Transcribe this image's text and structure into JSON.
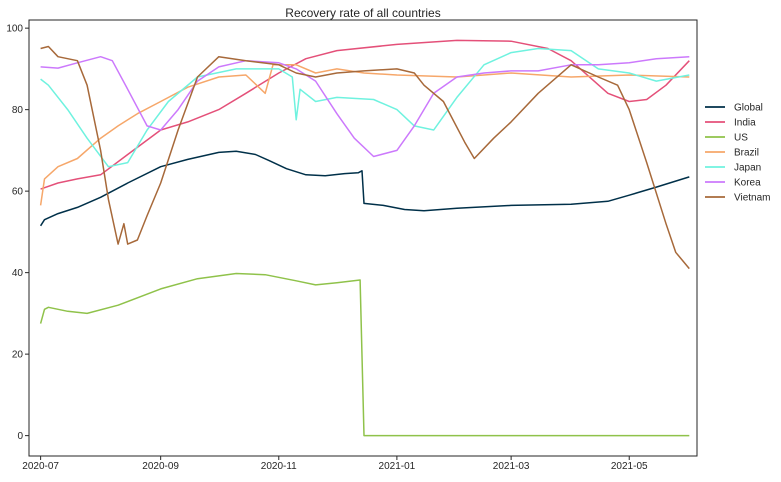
{
  "chart_data": {
    "type": "line",
    "title": "Recovery rate of all countries",
    "xlabel": "",
    "ylabel": "",
    "x_range": [
      "2020-06-25",
      "2021-06-05"
    ],
    "ylim": [
      -5,
      102
    ],
    "x_ticks": [
      {
        "date": "2020-07-01",
        "label": "2020-07"
      },
      {
        "date": "2020-09-01",
        "label": "2020-09"
      },
      {
        "date": "2020-11-01",
        "label": "2020-11"
      },
      {
        "date": "2021-01-01",
        "label": "2021-01"
      },
      {
        "date": "2021-03-01",
        "label": "2021-03"
      },
      {
        "date": "2021-05-01",
        "label": "2021-05"
      }
    ],
    "y_ticks": [
      0,
      20,
      40,
      60,
      80,
      100
    ],
    "grid": false,
    "legend_position": "right",
    "series": [
      {
        "name": "Global",
        "color": "#003049",
        "points": [
          [
            "2020-07-01",
            51.5
          ],
          [
            "2020-07-03",
            53
          ],
          [
            "2020-07-10",
            54.5
          ],
          [
            "2020-07-20",
            56
          ],
          [
            "2020-08-01",
            58.5
          ],
          [
            "2020-08-15",
            62
          ],
          [
            "2020-09-01",
            66
          ],
          [
            "2020-09-15",
            67.8
          ],
          [
            "2020-10-01",
            69.5
          ],
          [
            "2020-10-10",
            69.8
          ],
          [
            "2020-10-20",
            69
          ],
          [
            "2020-10-27",
            67.5
          ],
          [
            "2020-11-05",
            65.5
          ],
          [
            "2020-11-15",
            64
          ],
          [
            "2020-11-25",
            63.8
          ],
          [
            "2020-12-05",
            64.3
          ],
          [
            "2020-12-12",
            64.5
          ],
          [
            "2020-12-14",
            65
          ],
          [
            "2020-12-15",
            57
          ],
          [
            "2020-12-25",
            56.5
          ],
          [
            "2021-01-05",
            55.5
          ],
          [
            "2021-01-15",
            55.2
          ],
          [
            "2021-02-01",
            55.8
          ],
          [
            "2021-03-01",
            56.5
          ],
          [
            "2021-04-01",
            56.8
          ],
          [
            "2021-04-20",
            57.5
          ],
          [
            "2021-05-01",
            59
          ],
          [
            "2021-05-15",
            61
          ],
          [
            "2021-06-01",
            63.5
          ]
        ]
      },
      {
        "name": "India",
        "color": "#e45079",
        "points": [
          [
            "2020-07-01",
            60.5
          ],
          [
            "2020-07-10",
            62
          ],
          [
            "2020-07-20",
            63
          ],
          [
            "2020-08-01",
            64
          ],
          [
            "2020-08-15",
            69
          ],
          [
            "2020-09-01",
            75
          ],
          [
            "2020-09-15",
            77
          ],
          [
            "2020-10-01",
            80
          ],
          [
            "2020-10-15",
            84
          ],
          [
            "2020-11-01",
            89
          ],
          [
            "2020-11-15",
            92.5
          ],
          [
            "2020-12-01",
            94.5
          ],
          [
            "2021-01-01",
            96
          ],
          [
            "2021-02-01",
            97
          ],
          [
            "2021-03-01",
            96.8
          ],
          [
            "2021-03-20",
            95
          ],
          [
            "2021-04-01",
            92
          ],
          [
            "2021-04-20",
            84
          ],
          [
            "2021-05-01",
            82
          ],
          [
            "2021-05-10",
            82.5
          ],
          [
            "2021-05-20",
            86
          ],
          [
            "2021-06-01",
            92
          ]
        ]
      },
      {
        "name": "US",
        "color": "#8fc24a",
        "points": [
          [
            "2020-07-01",
            27.5
          ],
          [
            "2020-07-03",
            31
          ],
          [
            "2020-07-05",
            31.5
          ],
          [
            "2020-07-15",
            30.5
          ],
          [
            "2020-07-25",
            30
          ],
          [
            "2020-08-10",
            32
          ],
          [
            "2020-09-01",
            36
          ],
          [
            "2020-09-20",
            38.5
          ],
          [
            "2020-10-10",
            39.8
          ],
          [
            "2020-10-25",
            39.5
          ],
          [
            "2020-11-10",
            38
          ],
          [
            "2020-11-20",
            37
          ],
          [
            "2020-12-01",
            37.5
          ],
          [
            "2020-12-13",
            38.2
          ],
          [
            "2020-12-15",
            0
          ],
          [
            "2021-06-01",
            0
          ]
        ]
      },
      {
        "name": "Brazil",
        "color": "#f6a76a",
        "points": [
          [
            "2020-07-01",
            56.5
          ],
          [
            "2020-07-03",
            63
          ],
          [
            "2020-07-10",
            66
          ],
          [
            "2020-07-20",
            68
          ],
          [
            "2020-08-01",
            73
          ],
          [
            "2020-08-10",
            76
          ],
          [
            "2020-08-20",
            79
          ],
          [
            "2020-09-01",
            82
          ],
          [
            "2020-09-15",
            85.5
          ],
          [
            "2020-10-01",
            88
          ],
          [
            "2020-10-15",
            88.5
          ],
          [
            "2020-10-25",
            84
          ],
          [
            "2020-10-29",
            91
          ],
          [
            "2020-11-10",
            91
          ],
          [
            "2020-11-20",
            89
          ],
          [
            "2020-12-01",
            90
          ],
          [
            "2020-12-15",
            89
          ],
          [
            "2021-01-01",
            88.5
          ],
          [
            "2021-02-01",
            88
          ],
          [
            "2021-03-01",
            89
          ],
          [
            "2021-04-01",
            88
          ],
          [
            "2021-05-01",
            88.5
          ],
          [
            "2021-06-01",
            88
          ]
        ]
      },
      {
        "name": "Japan",
        "color": "#6ff2df",
        "points": [
          [
            "2020-07-01",
            87.5
          ],
          [
            "2020-07-05",
            86
          ],
          [
            "2020-07-15",
            80
          ],
          [
            "2020-07-25",
            73
          ],
          [
            "2020-08-05",
            66
          ],
          [
            "2020-08-15",
            67
          ],
          [
            "2020-08-25",
            75
          ],
          [
            "2020-09-05",
            82
          ],
          [
            "2020-09-20",
            88
          ],
          [
            "2020-10-10",
            90
          ],
          [
            "2020-11-01",
            90
          ],
          [
            "2020-11-08",
            88
          ],
          [
            "2020-11-10",
            77.5
          ],
          [
            "2020-11-12",
            85
          ],
          [
            "2020-11-20",
            82
          ],
          [
            "2020-12-01",
            83
          ],
          [
            "2020-12-20",
            82.5
          ],
          [
            "2021-01-01",
            80
          ],
          [
            "2021-01-10",
            76
          ],
          [
            "2021-01-20",
            75
          ],
          [
            "2021-02-01",
            83
          ],
          [
            "2021-02-15",
            91
          ],
          [
            "2021-03-01",
            94
          ],
          [
            "2021-03-15",
            95
          ],
          [
            "2021-04-01",
            94.5
          ],
          [
            "2021-04-15",
            90
          ],
          [
            "2021-05-01",
            89
          ],
          [
            "2021-05-15",
            87
          ],
          [
            "2021-06-01",
            88.5
          ]
        ]
      },
      {
        "name": "Korea",
        "color": "#cc79fc",
        "points": [
          [
            "2020-07-01",
            90.5
          ],
          [
            "2020-07-10",
            90.2
          ],
          [
            "2020-07-20",
            91.5
          ],
          [
            "2020-08-01",
            93
          ],
          [
            "2020-08-07",
            92
          ],
          [
            "2020-08-15",
            85
          ],
          [
            "2020-08-25",
            76
          ],
          [
            "2020-09-01",
            75
          ],
          [
            "2020-09-10",
            80
          ],
          [
            "2020-09-20",
            87
          ],
          [
            "2020-10-01",
            90.5
          ],
          [
            "2020-10-15",
            92
          ],
          [
            "2020-11-01",
            91.5
          ],
          [
            "2020-11-10",
            90
          ],
          [
            "2020-11-20",
            87
          ],
          [
            "2020-12-01",
            79
          ],
          [
            "2020-12-10",
            73
          ],
          [
            "2020-12-20",
            68.5
          ],
          [
            "2021-01-01",
            70
          ],
          [
            "2021-01-10",
            76
          ],
          [
            "2021-01-20",
            84
          ],
          [
            "2021-02-01",
            88
          ],
          [
            "2021-02-15",
            89
          ],
          [
            "2021-03-01",
            89.5
          ],
          [
            "2021-03-15",
            89.5
          ],
          [
            "2021-04-01",
            91
          ],
          [
            "2021-04-15",
            91
          ],
          [
            "2021-05-01",
            91.5
          ],
          [
            "2021-05-15",
            92.5
          ],
          [
            "2021-06-01",
            93
          ]
        ]
      },
      {
        "name": "Vietnam",
        "color": "#a7693a",
        "points": [
          [
            "2020-07-01",
            95
          ],
          [
            "2020-07-05",
            95.5
          ],
          [
            "2020-07-10",
            93
          ],
          [
            "2020-07-20",
            92
          ],
          [
            "2020-07-25",
            86
          ],
          [
            "2020-08-01",
            70
          ],
          [
            "2020-08-05",
            58
          ],
          [
            "2020-08-10",
            47
          ],
          [
            "2020-08-13",
            52
          ],
          [
            "2020-08-15",
            47
          ],
          [
            "2020-08-20",
            48
          ],
          [
            "2020-08-25",
            54
          ],
          [
            "2020-09-01",
            62
          ],
          [
            "2020-09-10",
            75
          ],
          [
            "2020-09-20",
            88
          ],
          [
            "2020-10-01",
            93
          ],
          [
            "2020-10-15",
            92
          ],
          [
            "2020-11-01",
            91
          ],
          [
            "2020-11-10",
            89
          ],
          [
            "2020-11-20",
            88
          ],
          [
            "2020-12-01",
            89
          ],
          [
            "2020-12-15",
            89.5
          ],
          [
            "2021-01-01",
            90
          ],
          [
            "2021-01-10",
            89
          ],
          [
            "2021-01-15",
            86
          ],
          [
            "2021-01-25",
            82
          ],
          [
            "2021-02-05",
            72
          ],
          [
            "2021-02-10",
            68
          ],
          [
            "2021-02-20",
            73
          ],
          [
            "2021-03-01",
            77
          ],
          [
            "2021-03-15",
            84
          ],
          [
            "2021-04-01",
            91
          ],
          [
            "2021-04-15",
            88
          ],
          [
            "2021-04-25",
            86
          ],
          [
            "2021-05-01",
            80
          ],
          [
            "2021-05-10",
            67
          ],
          [
            "2021-05-20",
            52
          ],
          [
            "2021-05-25",
            45
          ],
          [
            "2021-06-01",
            41
          ]
        ]
      }
    ]
  }
}
